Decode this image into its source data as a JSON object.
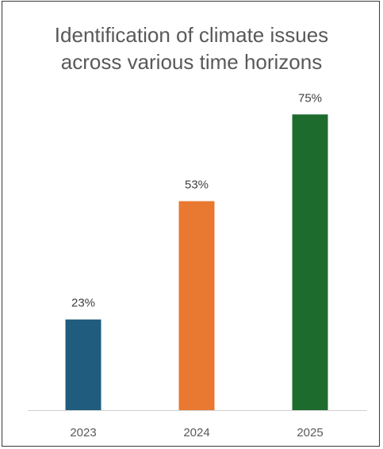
{
  "chart_data": {
    "type": "bar",
    "title_lines": [
      "Identification of climate issues",
      "across various time horizons"
    ],
    "categories": [
      "2023",
      "2024",
      "2025"
    ],
    "values": [
      23,
      53,
      75
    ],
    "data_labels": [
      "23%",
      "53%",
      "75%"
    ],
    "unit": "%",
    "ylim": [
      0,
      100
    ],
    "grid": false,
    "legend": "none",
    "colors": [
      "#1F5C7E",
      "#E97830",
      "#1E6B2E"
    ]
  }
}
